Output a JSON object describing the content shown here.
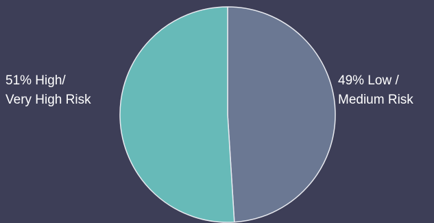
{
  "chart_data": {
    "type": "pie",
    "slices": [
      {
        "label_lines": [
          "49% Low /",
          "Medium Risk"
        ],
        "value": 49,
        "color": "#6b7893"
      },
      {
        "label_lines": [
          "51% High/",
          "Very High Risk"
        ],
        "value": 51,
        "color": "#67bab8"
      }
    ],
    "start_angle_deg": 0,
    "direction": "clockwise",
    "slice_border_color": "#e8eaf0"
  },
  "colors": {
    "background": "#3d3e57",
    "label_text": "#ffffff"
  }
}
